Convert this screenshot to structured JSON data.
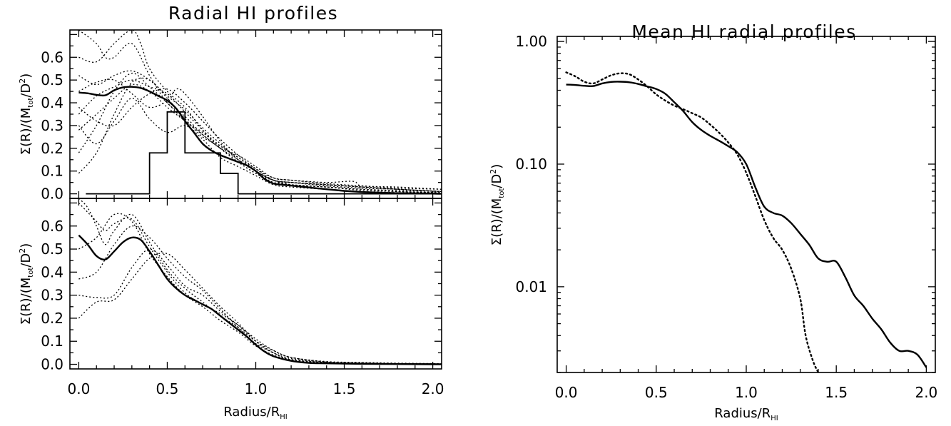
{
  "chart_data": [
    {
      "id": "top-left",
      "type": "line",
      "title": "Radial HI profiles",
      "xlabel": "",
      "ylabel": {
        "pre": "Σ(R)/(M",
        "sub": "tot",
        "mid": "/D",
        "sup": "2",
        "post": ")"
      },
      "xlim": [
        -0.05,
        2.05
      ],
      "ylim": [
        -0.02,
        0.72
      ],
      "yticks": [
        "0.0",
        "0.1",
        "0.2",
        "0.3",
        "0.4",
        "0.5",
        "0.6"
      ],
      "mean": {
        "x": [
          0.0,
          0.05,
          0.1,
          0.15,
          0.2,
          0.25,
          0.3,
          0.35,
          0.4,
          0.45,
          0.5,
          0.55,
          0.6,
          0.65,
          0.7,
          0.75,
          0.8,
          0.85,
          0.9,
          0.95,
          1.0,
          1.05,
          1.1,
          1.15,
          1.2,
          1.3,
          1.4,
          1.5,
          1.6,
          1.7,
          1.8,
          1.9,
          2.0,
          2.05
        ],
        "y": [
          0.445,
          0.442,
          0.435,
          0.433,
          0.455,
          0.468,
          0.47,
          0.465,
          0.45,
          0.43,
          0.41,
          0.375,
          0.32,
          0.27,
          0.22,
          0.19,
          0.17,
          0.155,
          0.14,
          0.125,
          0.1,
          0.065,
          0.045,
          0.04,
          0.036,
          0.028,
          0.02,
          0.013,
          0.008,
          0.005,
          0.003,
          0.002,
          0.001,
          0.0
        ]
      },
      "histogram": {
        "edges": [
          0.0,
          0.4,
          0.5,
          0.6,
          0.8,
          0.9,
          2.05
        ],
        "counts": [
          0.0,
          0.18,
          0.36,
          0.18,
          0.09,
          0.0
        ]
      },
      "individual": [
        {
          "x": [
            0.0,
            0.1,
            0.2,
            0.3,
            0.4,
            0.5,
            0.6,
            0.7,
            0.8,
            0.9,
            1.0,
            1.1,
            1.2,
            1.4,
            1.6,
            1.8,
            2.05
          ],
          "y": [
            0.09,
            0.18,
            0.35,
            0.49,
            0.5,
            0.42,
            0.33,
            0.25,
            0.21,
            0.16,
            0.1,
            0.05,
            0.05,
            0.04,
            0.03,
            0.02,
            0.01
          ]
        },
        {
          "x": [
            0.0,
            0.1,
            0.2,
            0.3,
            0.4,
            0.5,
            0.6,
            0.7,
            0.8,
            0.9,
            1.0,
            1.1,
            1.2,
            1.4,
            1.6,
            1.8,
            2.05
          ],
          "y": [
            0.18,
            0.3,
            0.45,
            0.53,
            0.47,
            0.4,
            0.32,
            0.27,
            0.2,
            0.14,
            0.09,
            0.06,
            0.04,
            0.03,
            0.02,
            0.01,
            0.005
          ]
        },
        {
          "x": [
            0.0,
            0.1,
            0.2,
            0.3,
            0.4,
            0.5,
            0.6,
            0.7,
            0.8,
            0.9,
            1.0,
            1.1,
            1.2,
            1.4,
            1.6,
            1.8,
            2.05
          ],
          "y": [
            0.3,
            0.22,
            0.32,
            0.42,
            0.33,
            0.27,
            0.3,
            0.24,
            0.16,
            0.12,
            0.08,
            0.04,
            0.03,
            0.02,
            0.01,
            0.005,
            0.003
          ]
        },
        {
          "x": [
            0.0,
            0.1,
            0.2,
            0.3,
            0.4,
            0.5,
            0.6,
            0.7,
            0.8,
            0.9,
            1.0,
            1.1,
            1.2,
            1.4,
            1.6,
            1.8,
            2.05
          ],
          "y": [
            0.38,
            0.32,
            0.3,
            0.38,
            0.44,
            0.46,
            0.4,
            0.32,
            0.24,
            0.17,
            0.11,
            0.06,
            0.04,
            0.03,
            0.015,
            0.01,
            0.005
          ]
        },
        {
          "x": [
            0.0,
            0.1,
            0.2,
            0.3,
            0.4,
            0.5,
            0.6,
            0.7,
            0.8,
            0.9,
            1.0,
            1.1,
            1.2,
            1.4,
            1.6,
            1.8,
            2.05
          ],
          "y": [
            0.52,
            0.48,
            0.52,
            0.54,
            0.5,
            0.43,
            0.37,
            0.29,
            0.22,
            0.15,
            0.1,
            0.06,
            0.05,
            0.04,
            0.03,
            0.02,
            0.01
          ]
        },
        {
          "x": [
            0.0,
            0.1,
            0.15,
            0.2,
            0.3,
            0.4,
            0.5,
            0.6,
            0.7,
            0.8,
            0.9,
            1.0,
            1.1,
            1.2,
            1.4,
            1.6,
            1.8,
            2.05
          ],
          "y": [
            0.72,
            0.66,
            0.6,
            0.6,
            0.66,
            0.52,
            0.4,
            0.34,
            0.26,
            0.2,
            0.15,
            0.1,
            0.06,
            0.05,
            0.04,
            0.03,
            0.02,
            0.01
          ]
        },
        {
          "x": [
            0.0,
            0.1,
            0.2,
            0.3,
            0.35,
            0.4,
            0.5,
            0.6,
            0.7,
            0.8,
            0.9,
            1.0,
            1.1,
            1.2,
            1.4,
            1.6,
            1.8,
            2.05
          ],
          "y": [
            0.6,
            0.58,
            0.66,
            0.72,
            0.66,
            0.55,
            0.45,
            0.38,
            0.28,
            0.2,
            0.14,
            0.09,
            0.05,
            0.04,
            0.03,
            0.02,
            0.015,
            0.01
          ]
        },
        {
          "x": [
            0.0,
            0.1,
            0.2,
            0.3,
            0.4,
            0.5,
            0.55,
            0.6,
            0.7,
            0.8,
            0.9,
            1.0,
            1.1,
            1.2,
            1.4,
            1.6,
            1.8,
            2.05
          ],
          "y": [
            0.45,
            0.49,
            0.5,
            0.44,
            0.38,
            0.41,
            0.46,
            0.44,
            0.34,
            0.23,
            0.15,
            0.1,
            0.06,
            0.05,
            0.035,
            0.025,
            0.02,
            0.01
          ]
        },
        {
          "x": [
            0.0,
            0.1,
            0.2,
            0.3,
            0.4,
            0.5,
            0.6,
            0.7,
            0.8,
            0.9,
            1.0,
            1.1,
            1.2,
            1.4,
            1.55,
            1.6,
            1.8,
            2.05
          ],
          "y": [
            0.28,
            0.35,
            0.42,
            0.48,
            0.45,
            0.38,
            0.32,
            0.26,
            0.2,
            0.17,
            0.12,
            0.07,
            0.06,
            0.05,
            0.055,
            0.035,
            0.03,
            0.02
          ]
        },
        {
          "x": [
            0.0,
            0.1,
            0.2,
            0.3,
            0.4,
            0.5,
            0.6,
            0.7,
            0.8,
            0.9,
            1.0,
            1.1,
            1.2,
            1.4,
            1.6,
            1.8,
            2.05
          ],
          "y": [
            0.35,
            0.43,
            0.47,
            0.5,
            0.47,
            0.44,
            0.36,
            0.28,
            0.21,
            0.16,
            0.11,
            0.07,
            0.06,
            0.045,
            0.035,
            0.025,
            0.02
          ]
        }
      ]
    },
    {
      "id": "bottom-left",
      "type": "line",
      "title": "",
      "xlabel": {
        "pre": "Radius/R",
        "sub": "HI"
      },
      "ylabel": {
        "pre": "Σ(R)/(M",
        "sub": "tot",
        "mid": "/D",
        "sup": "2",
        "post": ")"
      },
      "xlim": [
        -0.05,
        2.05
      ],
      "ylim": [
        -0.02,
        0.72
      ],
      "xticks": [
        "0.0",
        "0.5",
        "1.0",
        "1.5",
        "2.0"
      ],
      "yticks": [
        "0.0",
        "0.1",
        "0.2",
        "0.3",
        "0.4",
        "0.5",
        "0.6"
      ],
      "mean": {
        "x": [
          0.0,
          0.05,
          0.1,
          0.15,
          0.2,
          0.25,
          0.3,
          0.35,
          0.4,
          0.45,
          0.5,
          0.55,
          0.6,
          0.65,
          0.7,
          0.75,
          0.8,
          0.85,
          0.9,
          0.95,
          1.0,
          1.05,
          1.1,
          1.2,
          1.3,
          1.4,
          1.6,
          1.8,
          2.0,
          2.05
        ],
        "y": [
          0.56,
          0.52,
          0.47,
          0.455,
          0.49,
          0.53,
          0.55,
          0.54,
          0.49,
          0.43,
          0.37,
          0.33,
          0.3,
          0.28,
          0.26,
          0.24,
          0.21,
          0.18,
          0.15,
          0.12,
          0.085,
          0.055,
          0.035,
          0.015,
          0.006,
          0.004,
          0.002,
          0.001,
          0.0,
          0.0
        ]
      },
      "individual": [
        {
          "x": [
            0.0,
            0.1,
            0.2,
            0.3,
            0.4,
            0.5,
            0.6,
            0.7,
            0.8,
            0.9,
            1.0,
            1.1,
            1.2,
            1.4,
            1.6,
            1.8,
            2.05
          ],
          "y": [
            0.2,
            0.27,
            0.28,
            0.37,
            0.46,
            0.48,
            0.41,
            0.33,
            0.25,
            0.18,
            0.1,
            0.05,
            0.02,
            0.008,
            0.004,
            0.003,
            0.002
          ]
        },
        {
          "x": [
            0.0,
            0.1,
            0.2,
            0.3,
            0.4,
            0.5,
            0.6,
            0.7,
            0.8,
            0.9,
            1.0,
            1.1,
            1.2,
            1.4,
            1.6,
            1.8,
            2.05
          ],
          "y": [
            0.3,
            0.29,
            0.3,
            0.42,
            0.5,
            0.43,
            0.34,
            0.3,
            0.23,
            0.17,
            0.1,
            0.05,
            0.02,
            0.006,
            0.004,
            0.002,
            0.001
          ]
        },
        {
          "x": [
            0.0,
            0.1,
            0.2,
            0.3,
            0.4,
            0.5,
            0.6,
            0.7,
            0.8,
            0.9,
            1.0,
            1.1,
            1.2,
            1.4,
            1.6,
            1.8,
            2.05
          ],
          "y": [
            0.37,
            0.4,
            0.52,
            0.6,
            0.55,
            0.46,
            0.38,
            0.32,
            0.24,
            0.16,
            0.09,
            0.05,
            0.025,
            0.008,
            0.005,
            0.003,
            0.002
          ]
        },
        {
          "x": [
            0.0,
            0.1,
            0.2,
            0.3,
            0.4,
            0.5,
            0.6,
            0.7,
            0.8,
            0.9,
            1.0,
            1.1,
            1.2,
            1.4,
            1.6,
            1.8,
            2.05
          ],
          "y": [
            0.5,
            0.55,
            0.65,
            0.62,
            0.48,
            0.38,
            0.3,
            0.25,
            0.19,
            0.14,
            0.08,
            0.04,
            0.02,
            0.007,
            0.004,
            0.002,
            0.001
          ]
        },
        {
          "x": [
            0.0,
            0.05,
            0.1,
            0.15,
            0.2,
            0.3,
            0.4,
            0.5,
            0.6,
            0.7,
            0.8,
            0.9,
            1.0,
            1.1,
            1.2,
            1.4,
            1.6,
            1.8,
            2.05
          ],
          "y": [
            0.72,
            0.68,
            0.6,
            0.52,
            0.58,
            0.65,
            0.53,
            0.41,
            0.33,
            0.27,
            0.21,
            0.16,
            0.1,
            0.06,
            0.03,
            0.01,
            0.006,
            0.003,
            0.002
          ]
        },
        {
          "x": [
            0.0,
            0.05,
            0.1,
            0.15,
            0.2,
            0.3,
            0.4,
            0.5,
            0.6,
            0.7,
            0.8,
            0.9,
            1.0,
            1.1,
            1.2,
            1.4,
            1.6,
            1.8,
            2.05
          ],
          "y": [
            0.7,
            0.66,
            0.62,
            0.58,
            0.61,
            0.63,
            0.51,
            0.4,
            0.31,
            0.26,
            0.22,
            0.17,
            0.11,
            0.06,
            0.03,
            0.012,
            0.008,
            0.005,
            0.003
          ]
        }
      ]
    },
    {
      "id": "right",
      "type": "line",
      "title": "Mean HI radial profiles",
      "xlabel": {
        "pre": "Radius/R",
        "sub": "HI"
      },
      "ylabel": {
        "pre": "Σ(R)/(M",
        "sub": "tot",
        "mid": "/D",
        "sup": "2",
        "post": ")"
      },
      "xlim": [
        -0.05,
        2.05
      ],
      "ylim": [
        0.002,
        1.1
      ],
      "yscale": "log",
      "xticks": [
        "0.0",
        "0.5",
        "1.0",
        "1.5",
        "2.0"
      ],
      "yticks": [
        "0.01",
        "0.10",
        "1.00"
      ],
      "series": [
        {
          "style": "solid",
          "x": [
            0.0,
            0.05,
            0.1,
            0.15,
            0.2,
            0.25,
            0.3,
            0.35,
            0.4,
            0.45,
            0.5,
            0.55,
            0.6,
            0.65,
            0.7,
            0.75,
            0.8,
            0.85,
            0.9,
            0.95,
            1.0,
            1.05,
            1.1,
            1.15,
            1.2,
            1.25,
            1.3,
            1.35,
            1.4,
            1.45,
            1.5,
            1.55,
            1.6,
            1.65,
            1.7,
            1.75,
            1.8,
            1.85,
            1.9,
            1.95,
            2.0
          ],
          "y": [
            0.445,
            0.442,
            0.435,
            0.433,
            0.455,
            0.468,
            0.47,
            0.465,
            0.45,
            0.43,
            0.41,
            0.375,
            0.32,
            0.27,
            0.22,
            0.19,
            0.17,
            0.155,
            0.14,
            0.125,
            0.1,
            0.065,
            0.045,
            0.04,
            0.038,
            0.033,
            0.027,
            0.022,
            0.017,
            0.016,
            0.016,
            0.012,
            0.0085,
            0.007,
            0.0055,
            0.0045,
            0.0035,
            0.003,
            0.003,
            0.0028,
            0.0022
          ]
        },
        {
          "style": "dotted",
          "x": [
            0.0,
            0.05,
            0.1,
            0.15,
            0.2,
            0.25,
            0.3,
            0.35,
            0.4,
            0.45,
            0.5,
            0.55,
            0.6,
            0.65,
            0.7,
            0.75,
            0.8,
            0.85,
            0.9,
            0.95,
            1.0,
            1.05,
            1.1,
            1.15,
            1.2,
            1.25,
            1.3,
            1.33,
            1.37,
            1.4
          ],
          "y": [
            0.56,
            0.52,
            0.47,
            0.455,
            0.49,
            0.53,
            0.55,
            0.54,
            0.49,
            0.43,
            0.37,
            0.33,
            0.3,
            0.28,
            0.26,
            0.24,
            0.21,
            0.18,
            0.15,
            0.12,
            0.085,
            0.055,
            0.035,
            0.025,
            0.02,
            0.014,
            0.008,
            0.004,
            0.0025,
            0.002
          ]
        }
      ]
    }
  ]
}
